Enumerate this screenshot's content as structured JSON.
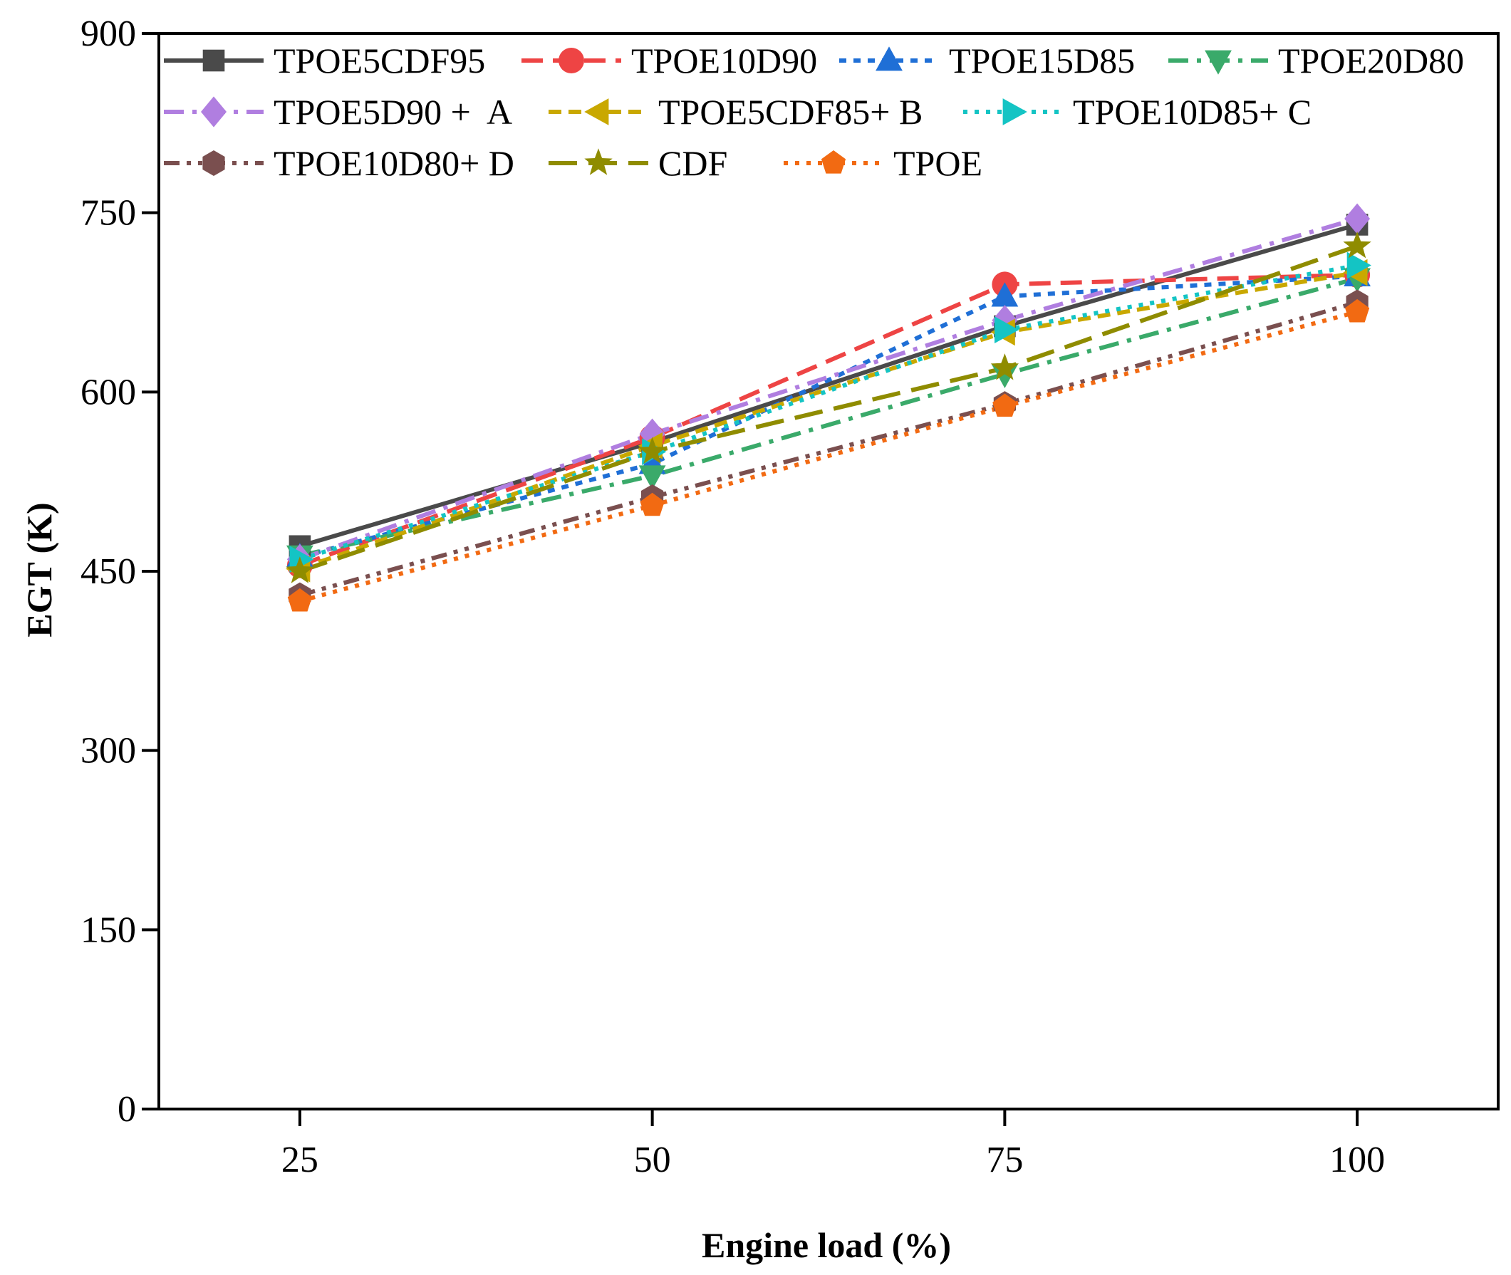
{
  "chart_data": {
    "type": "line",
    "title": "",
    "xlabel": "Engine load (%)",
    "ylabel": "EGT (K)",
    "x": [
      25,
      50,
      75,
      100
    ],
    "xlim": [
      15,
      110
    ],
    "ylim": [
      0,
      900
    ],
    "xticks": [
      25,
      50,
      75,
      100
    ],
    "yticks": [
      0,
      150,
      300,
      450,
      600,
      750,
      900
    ],
    "grid": false,
    "legend_position": "top",
    "series": [
      {
        "name": "TPOE5CDF95",
        "values": [
          471,
          558,
          655,
          740
        ],
        "color": "#4a4a4a",
        "dash": "solid",
        "marker": "square"
      },
      {
        "name": "TPOE10D90",
        "values": [
          455,
          562,
          690,
          698
        ],
        "color": "#ee4444",
        "dash": "dash",
        "marker": "circle"
      },
      {
        "name": "TPOE15D85",
        "values": [
          462,
          540,
          680,
          697
        ],
        "color": "#1f6fd6",
        "dash": "shortdot",
        "marker": "triangle-up"
      },
      {
        "name": "TPOE20D80",
        "values": [
          463,
          530,
          615,
          695
        ],
        "color": "#3aaa6a",
        "dash": "dashdot",
        "marker": "triangle-down"
      },
      {
        "name": "TPOE5D90 +  A",
        "values": [
          460,
          565,
          660,
          745
        ],
        "color": "#b07ee0",
        "dash": "dashdot",
        "marker": "diamond"
      },
      {
        "name": "TPOE5CDF85+ B",
        "values": [
          452,
          555,
          650,
          700
        ],
        "color": "#c9a800",
        "dash": "shortdash",
        "marker": "triangle-left"
      },
      {
        "name": "TPOE10D85+ C",
        "values": [
          460,
          550,
          652,
          706
        ],
        "color": "#14c4c4",
        "dash": "dot",
        "marker": "triangle-right"
      },
      {
        "name": "TPOE10D80+ D",
        "values": [
          430,
          512,
          590,
          675
        ],
        "color": "#7a4f4f",
        "dash": "dashdotdot",
        "marker": "hexagon"
      },
      {
        "name": "CDF",
        "values": [
          450,
          550,
          620,
          722
        ],
        "color": "#8f8c00",
        "dash": "longdash",
        "marker": "star"
      },
      {
        "name": "TPOE",
        "values": [
          425,
          505,
          588,
          667
        ],
        "color": "#f26a12",
        "dash": "dot",
        "marker": "pentagon"
      }
    ]
  }
}
